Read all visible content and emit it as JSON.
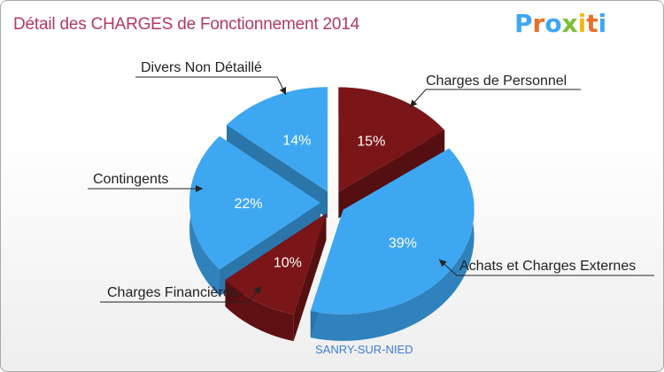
{
  "title": "Détail des CHARGES de Fonctionnement 2014",
  "logo": {
    "text": "Proxiti",
    "icon": "proxiti-logo"
  },
  "footer": "SANRY-SUR-NIED",
  "colors": {
    "blue": "#3ea7f2",
    "blue_dark": "#2b86c9",
    "red": "#7a1518",
    "red_dark": "#5a0d10",
    "title": "#b23a5e"
  },
  "chart_data": {
    "type": "pie",
    "title": "Détail des CHARGES de Fonctionnement 2014",
    "style": "3d-exploded",
    "categories": [
      "Charges de Personnel",
      "Achats et Charges Externes",
      "Charges Financières",
      "Contingents",
      "Divers Non Détaillé"
    ],
    "values": [
      15,
      39,
      10,
      22,
      14
    ],
    "labels": [
      "15%",
      "39%",
      "10%",
      "22%",
      "14%"
    ],
    "colors": [
      "#7a1518",
      "#3ea7f2",
      "#7a1518",
      "#3ea7f2",
      "#3ea7f2"
    ]
  }
}
